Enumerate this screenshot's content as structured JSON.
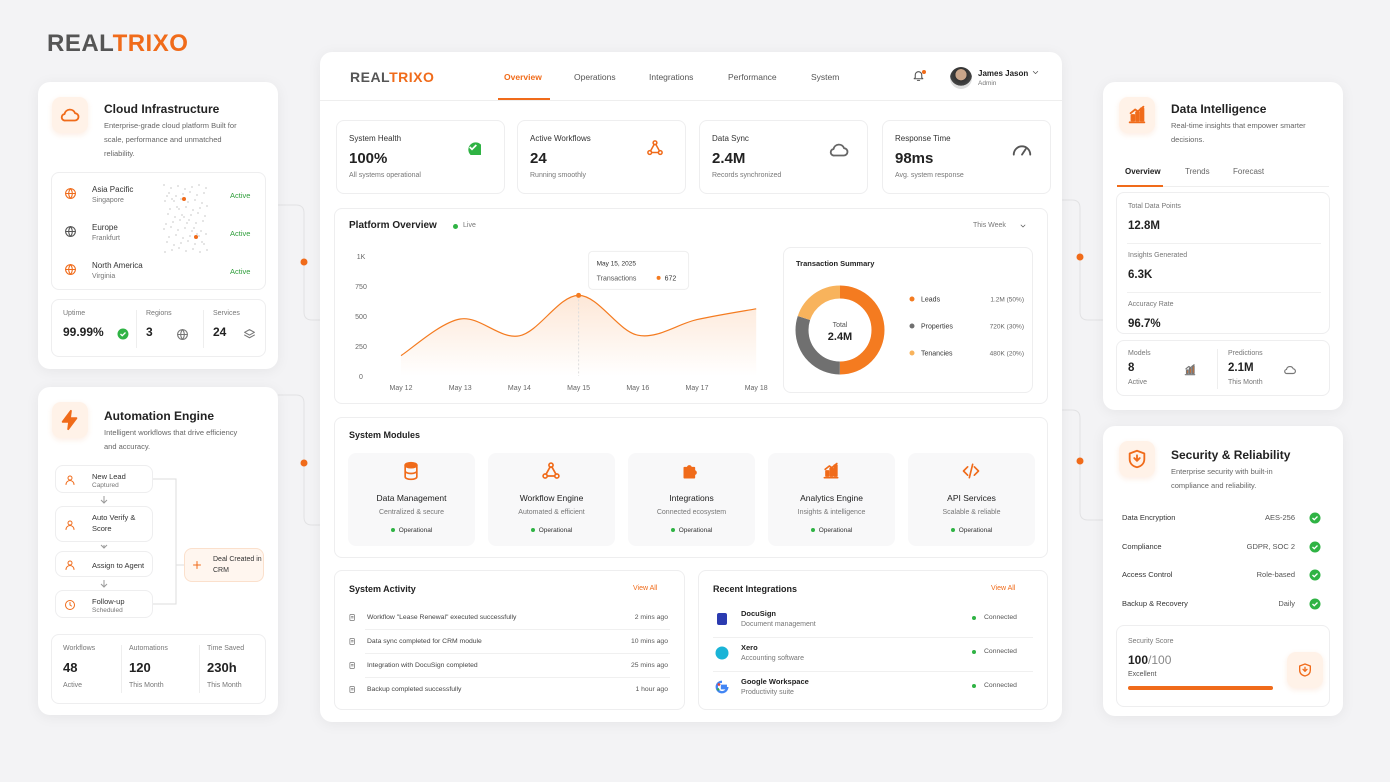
{
  "brand": {
    "name_dark": "REAL",
    "name_accent": "TRIXO"
  },
  "cloud": {
    "title": "Cloud Infrastructure",
    "description": "Enterprise-grade cloud platform Built for scale, performance and unmatched reliability.",
    "regions": [
      {
        "name": "Asia Pacific",
        "location": "Singapore",
        "status": "Active"
      },
      {
        "name": "Europe",
        "location": "Frankfurt",
        "status": "Active"
      },
      {
        "name": "North America",
        "location": "Virginia",
        "status": "Active"
      }
    ],
    "stats": [
      {
        "label": "Uptime",
        "value": "99.99%"
      },
      {
        "label": "Regions",
        "value": "3"
      },
      {
        "label": "Services",
        "value": "24"
      }
    ]
  },
  "automation": {
    "title": "Automation Engine",
    "description": "Intelligent workflows that drive efficiency and accuracy.",
    "steps": [
      {
        "title": "New Lead",
        "subtitle": "Captured"
      },
      {
        "title": "Auto Verify & Score"
      },
      {
        "title": "Assign to Agent"
      },
      {
        "title": "Follow-up",
        "subtitle": "Scheduled"
      }
    ],
    "result": "Deal Created in CRM",
    "stats": [
      {
        "label": "Workflows",
        "value": "48",
        "note": "Active"
      },
      {
        "label": "Automations",
        "value": "120",
        "note": "This Month"
      },
      {
        "label": "Time Saved",
        "value": "230h",
        "note": "This Month"
      }
    ]
  },
  "header": {
    "brand_dark": "REAL",
    "brand_accent": "TRIXO",
    "nav": [
      "Overview",
      "Operations",
      "Integrations",
      "Performance",
      "System"
    ],
    "user": {
      "name": "James Jason",
      "role": "Admin"
    }
  },
  "kpis": [
    {
      "label": "System Health",
      "value": "100%",
      "note": "All systems operational"
    },
    {
      "label": "Active Workflows",
      "value": "24",
      "note": "Running smoothly"
    },
    {
      "label": "Data Sync",
      "value": "2.4M",
      "note": "Records synchronized"
    },
    {
      "label": "Response Time",
      "value": "98ms",
      "note": "Avg. system response"
    }
  ],
  "chart_data": [
    {
      "type": "line",
      "title": "Platform Overview",
      "status": "Live",
      "period": "This Week",
      "categories": [
        "May 12",
        "May 13",
        "May 14",
        "May 15",
        "May 16",
        "May 17",
        "May 18"
      ],
      "series": [
        {
          "name": "Transactions",
          "color": "#f47b20",
          "values": [
            170,
            475,
            335,
            672,
            340,
            470,
            560
          ]
        }
      ],
      "ylim": [
        0,
        1000
      ],
      "yticks": [
        0,
        250,
        500,
        750,
        {
          "value": 1000,
          "label": "1K"
        }
      ],
      "grid": false,
      "tooltip_date": "May 15, 2025"
    },
    {
      "type": "donut",
      "title": "Transaction Summary",
      "center_label": "Total",
      "center_value": "2.4M",
      "categories": [
        "Leads",
        "Properties",
        "Tenancies"
      ],
      "values": [
        50,
        30,
        20
      ],
      "value_labels": [
        "1.2M (50%)",
        "720K (30%)",
        "480K (20%)"
      ],
      "colors": [
        "#f47b20",
        "#707070",
        "#f8b35c"
      ]
    }
  ],
  "modules": {
    "title": "System Modules",
    "items": [
      {
        "name": "Data Management",
        "description": "Centralized & secure",
        "status": "Operational"
      },
      {
        "name": "Workflow Engine",
        "description": "Automated & efficient",
        "status": "Operational"
      },
      {
        "name": "Integrations",
        "description": "Connected ecosystem",
        "status": "Operational"
      },
      {
        "name": "Analytics Engine",
        "description": "Insights & intelligence",
        "status": "Operational"
      },
      {
        "name": "API Services",
        "description": "Scalable & reliable",
        "status": "Operational"
      }
    ]
  },
  "activity": {
    "title": "System Activity",
    "action": "View All",
    "items": [
      {
        "text": "Workflow \"Lease Renewal\" executed successfully",
        "time": "2 mins ago"
      },
      {
        "text": "Data sync completed for CRM module",
        "time": "10 mins ago"
      },
      {
        "text": "Integration with DocuSign completed",
        "time": "25 mins ago"
      },
      {
        "text": "Backup completed successfully",
        "time": "1 hour ago"
      }
    ]
  },
  "integrations": {
    "title": "Recent Integrations",
    "action": "View All",
    "items": [
      {
        "name": "DocuSign",
        "description": "Document management",
        "status": "Connected"
      },
      {
        "name": "Xero",
        "description": "Accounting software",
        "status": "Connected"
      },
      {
        "name": "Google Workspace",
        "description": "Productivity suite",
        "status": "Connected"
      }
    ]
  },
  "data_intelligence": {
    "title": "Data Intelligence",
    "description": "Real-time insights that empower smarter decisions.",
    "tabs": [
      "Overview",
      "Trends",
      "Forecast"
    ],
    "metrics": [
      {
        "label": "Total Data Points",
        "value": "12.8M"
      },
      {
        "label": "Insights Generated",
        "value": "6.3K"
      },
      {
        "label": "Accuracy Rate",
        "value": "96.7%"
      }
    ],
    "stats": [
      {
        "label": "Models",
        "value": "8",
        "note": "Active"
      },
      {
        "label": "Predictions",
        "value": "2.1M",
        "note": "This Month"
      }
    ]
  },
  "security": {
    "title": "Security & Reliability",
    "description": "Enterprise security with built-in compliance and reliability.",
    "items": [
      {
        "label": "Data Encryption",
        "value": "AES-256"
      },
      {
        "label": "Compliance",
        "value": "GDPR, SOC 2"
      },
      {
        "label": "Access Control",
        "value": "Role-based"
      },
      {
        "label": "Backup & Recovery",
        "value": "Daily"
      }
    ],
    "score_label": "Security Score",
    "score": 100,
    "score_separator": "/",
    "score_max": 100,
    "rating": "Excellent"
  }
}
